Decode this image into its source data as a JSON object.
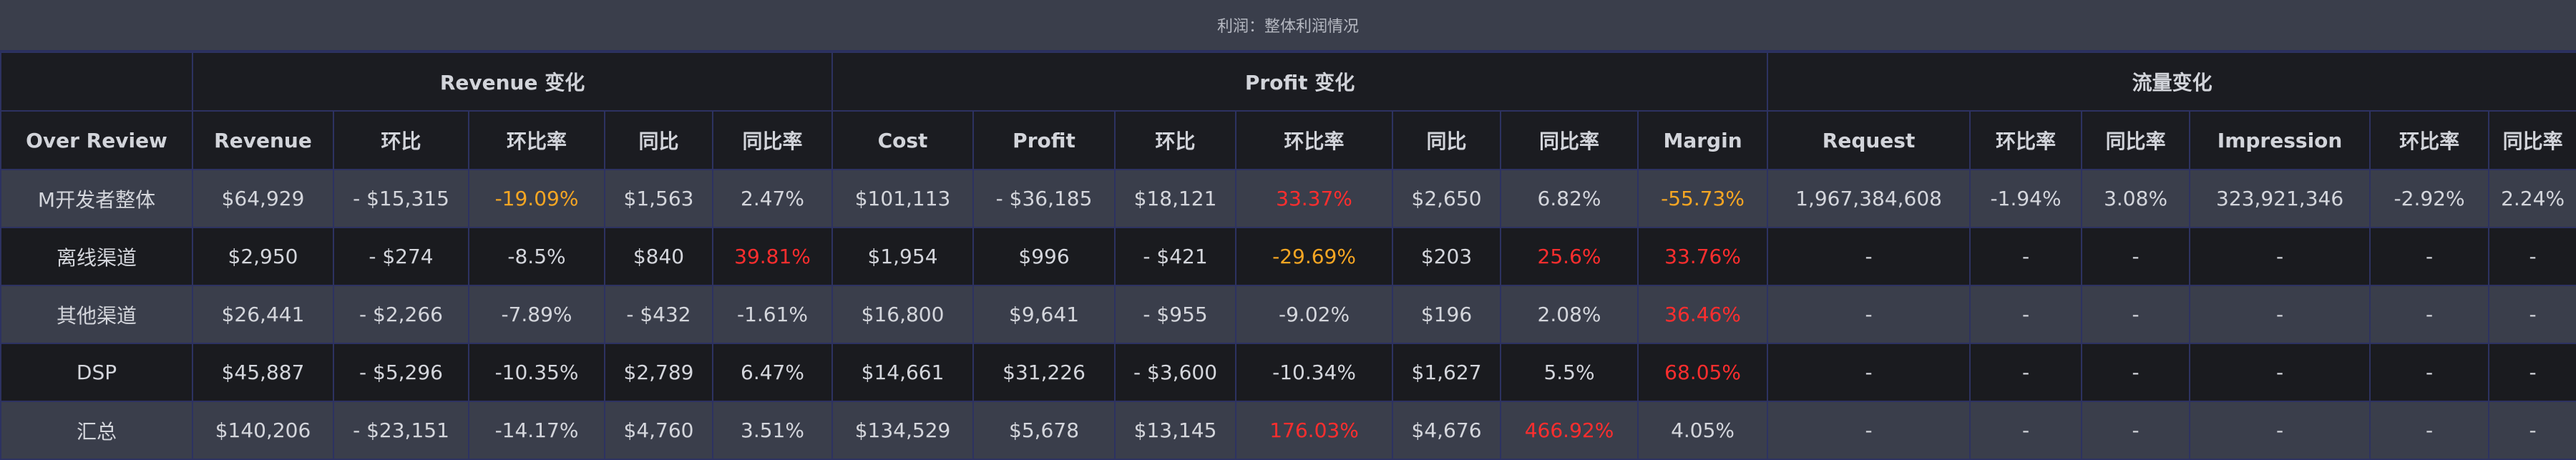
{
  "title": "利润：整体利润情况",
  "groups": {
    "revenue": "Revenue 变化",
    "profit": "Profit 变化",
    "traffic": "流量变化"
  },
  "headers": {
    "over_review": "Over Review",
    "revenue": "Revenue",
    "rev_hb": "环比",
    "rev_hbl": "环比率",
    "rev_tb": "同比",
    "rev_tbl": "同比率",
    "cost": "Cost",
    "profit": "Profit",
    "pro_hb": "环比",
    "pro_hbl": "环比率",
    "pro_tb": "同比",
    "pro_tbl": "同比率",
    "margin": "Margin",
    "request": "Request",
    "req_hbl": "环比率",
    "req_tbl": "同比率",
    "impression": "Impression",
    "imp_hbl": "环比率",
    "imp_tbl": "同比率"
  },
  "colors": {
    "orange": "#f6a623",
    "red": "#ff2e2e"
  },
  "rows": [
    [
      "M开发者整体",
      "$64,929",
      "- $15,315",
      "-19.09%",
      "$1,563",
      "2.47%",
      "$101,113",
      "- $36,185",
      "$18,121",
      "33.37%",
      "$2,650",
      "6.82%",
      "-55.73%",
      "1,967,384,608",
      "-1.94%",
      "3.08%",
      "323,921,346",
      "-2.92%",
      "2.24%"
    ],
    [
      "离线渠道",
      "$2,950",
      "- $274",
      "-8.5%",
      "$840",
      "39.81%",
      "$1,954",
      "$996",
      "- $421",
      "-29.69%",
      "$203",
      "25.6%",
      "33.76%",
      "-",
      "-",
      "-",
      "-",
      "-",
      "-"
    ],
    [
      "其他渠道",
      "$26,441",
      "- $2,266",
      "-7.89%",
      "- $432",
      "-1.61%",
      "$16,800",
      "$9,641",
      "- $955",
      "-9.02%",
      "$196",
      "2.08%",
      "36.46%",
      "-",
      "-",
      "-",
      "-",
      "-",
      "-"
    ],
    [
      "DSP",
      "$45,887",
      "- $5,296",
      "-10.35%",
      "$2,789",
      "6.47%",
      "$14,661",
      "$31,226",
      "- $3,600",
      "-10.34%",
      "$1,627",
      "5.5%",
      "68.05%",
      "-",
      "-",
      "-",
      "-",
      "-",
      "-"
    ],
    [
      "汇总",
      "$140,206",
      "- $23,151",
      "-14.17%",
      "$4,760",
      "3.51%",
      "$134,529",
      "$5,678",
      "$13,145",
      "176.03%",
      "$4,676",
      "466.92%",
      "4.05%",
      "-",
      "-",
      "-",
      "-",
      "-",
      "-"
    ]
  ],
  "highlights": {
    "0": {
      "3": "orange",
      "9": "red",
      "12": "orange"
    },
    "1": {
      "5": "red",
      "9": "orange",
      "11": "red",
      "12": "red"
    },
    "2": {
      "12": "red"
    },
    "3": {
      "12": "red"
    },
    "4": {
      "9": "red",
      "11": "red"
    }
  }
}
